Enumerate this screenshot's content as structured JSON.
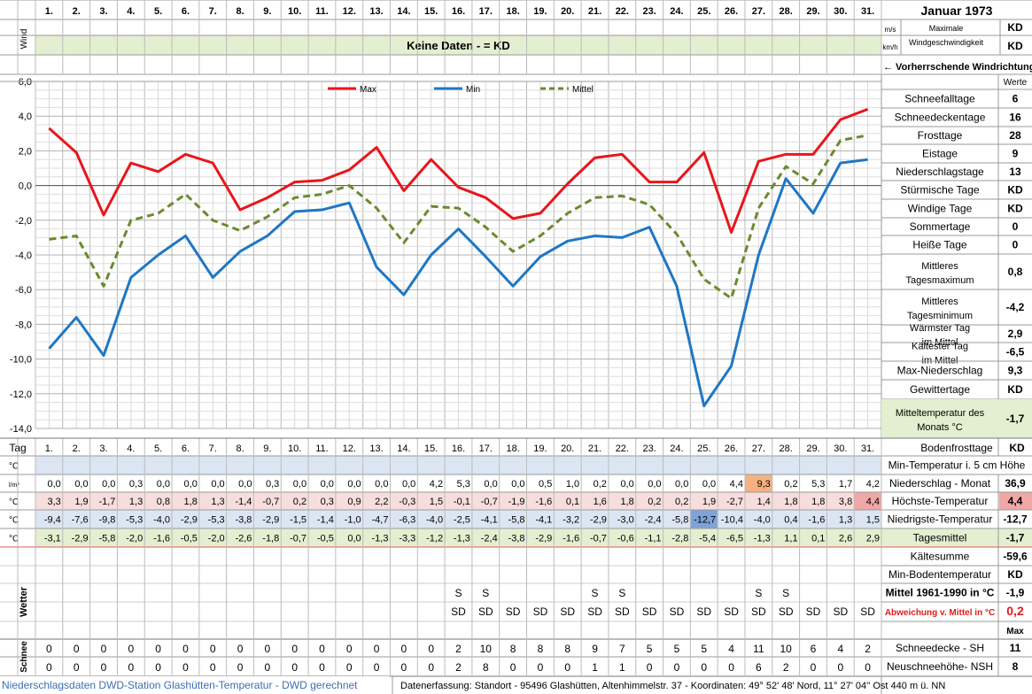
{
  "title": "Januar 1973",
  "days": [
    "1.",
    "2.",
    "3.",
    "4.",
    "5.",
    "6.",
    "7.",
    "8.",
    "9.",
    "10.",
    "11.",
    "12.",
    "13.",
    "14.",
    "15.",
    "16.",
    "17.",
    "18.",
    "19.",
    "20.",
    "21.",
    "22.",
    "23.",
    "24.",
    "25.",
    "26.",
    "27.",
    "28.",
    "29.",
    "30.",
    "31."
  ],
  "wind": {
    "label": "Wind",
    "unit_ms": "m/s",
    "unit_kmh": "km/h",
    "no_data": "Keine Daten -  = KD",
    "max_label": "Maximale Windgeschwindigkeit",
    "max_ms": "KD",
    "max_kmh": "KD",
    "direction": "← Vorherrschende Windrichtung"
  },
  "chart_data": {
    "type": "line",
    "x": [
      1,
      2,
      3,
      4,
      5,
      6,
      7,
      8,
      9,
      10,
      11,
      12,
      13,
      14,
      15,
      16,
      17,
      18,
      19,
      20,
      21,
      22,
      23,
      24,
      25,
      26,
      27,
      28,
      29,
      30,
      31
    ],
    "ylim": [
      -14,
      6
    ],
    "ytick_labels": [
      "6,0",
      "4,0",
      "2,0",
      "0,0",
      "-2,0",
      "-4,0",
      "-6,0",
      "-8,0",
      "-10,0",
      "-12,0",
      "-14,0"
    ],
    "yticks": [
      6,
      4,
      2,
      0,
      -2,
      -4,
      -6,
      -8,
      -10,
      -12,
      -14
    ],
    "grid": true,
    "legend_position": "top",
    "series": [
      {
        "name": "Max",
        "color": "#e8161c",
        "dash": false,
        "values": [
          3.3,
          1.9,
          -1.7,
          1.3,
          0.8,
          1.8,
          1.3,
          -1.4,
          -0.7,
          0.2,
          0.3,
          0.9,
          2.2,
          -0.3,
          1.5,
          -0.1,
          -0.7,
          -1.9,
          -1.6,
          0.1,
          1.6,
          1.8,
          0.2,
          0.2,
          1.9,
          -2.7,
          1.4,
          1.8,
          1.8,
          3.8,
          4.4
        ]
      },
      {
        "name": "Min",
        "color": "#1f77c4",
        "dash": false,
        "values": [
          -9.4,
          -7.6,
          -9.8,
          -5.3,
          -4.0,
          -2.9,
          -5.3,
          -3.8,
          -2.9,
          -1.5,
          -1.4,
          -1.0,
          -4.7,
          -6.3,
          -4.0,
          -2.5,
          -4.1,
          -5.8,
          -4.1,
          -3.2,
          -2.9,
          -3.0,
          -2.4,
          -5.8,
          -12.7,
          -10.4,
          -4.0,
          0.4,
          -1.6,
          1.3,
          1.5
        ]
      },
      {
        "name": "Mittel",
        "color": "#6b8a2e",
        "dash": true,
        "values": [
          -3.1,
          -2.9,
          -5.8,
          -2.0,
          -1.6,
          -0.5,
          -2.0,
          -2.6,
          -1.8,
          -0.7,
          -0.5,
          0.0,
          -1.3,
          -3.3,
          -1.2,
          -1.3,
          -2.4,
          -3.8,
          -2.9,
          -1.6,
          -0.7,
          -0.6,
          -1.1,
          -2.8,
          -5.4,
          -6.5,
          -1.3,
          1.1,
          0.1,
          2.6,
          2.9
        ]
      }
    ]
  },
  "table": {
    "tag_label": "Tag",
    "rows": [
      {
        "unit": "°C",
        "values": [
          "",
          "",
          "",
          "",
          "",
          "",
          "",
          "",
          "",
          "",
          "",
          "",
          "",
          "",
          "",
          "",
          "",
          "",
          "",
          "",
          "",
          "",
          "",
          "",
          "",
          "",
          "",
          "",
          "",
          "",
          ""
        ]
      },
      {
        "unit": "l/m²",
        "values": [
          "0,0",
          "0,0",
          "0,0",
          "0,3",
          "0,0",
          "0,0",
          "0,0",
          "0,0",
          "0,3",
          "0,0",
          "0,0",
          "0,0",
          "0,0",
          "0,0",
          "4,2",
          "5,3",
          "0,0",
          "0,0",
          "0,5",
          "1,0",
          "0,2",
          "0,0",
          "0,0",
          "0,0",
          "0,0",
          "4,4",
          "9,3",
          "0,2",
          "5,3",
          "1,7",
          "4,2"
        ]
      },
      {
        "unit": "°C",
        "values": [
          "3,3",
          "1,9",
          "-1,7",
          "1,3",
          "0,8",
          "1,8",
          "1,3",
          "-1,4",
          "-0,7",
          "0,2",
          "0,3",
          "0,9",
          "2,2",
          "-0,3",
          "1,5",
          "-0,1",
          "-0,7",
          "-1,9",
          "-1,6",
          "0,1",
          "1,6",
          "1,8",
          "0,2",
          "0,2",
          "1,9",
          "-2,7",
          "1,4",
          "1,8",
          "1,8",
          "3,8",
          "4,4"
        ]
      },
      {
        "unit": "°C",
        "values": [
          "-9,4",
          "-7,6",
          "-9,8",
          "-5,3",
          "-4,0",
          "-2,9",
          "-5,3",
          "-3,8",
          "-2,9",
          "-1,5",
          "-1,4",
          "-1,0",
          "-4,7",
          "-6,3",
          "-4,0",
          "-2,5",
          "-4,1",
          "-5,8",
          "-4,1",
          "-3,2",
          "-2,9",
          "-3,0",
          "-2,4",
          "-5,8",
          "-12,7",
          "-10,4",
          "-4,0",
          "0,4",
          "-1,6",
          "1,3",
          "1,5"
        ]
      },
      {
        "unit": "°C",
        "values": [
          "-3,1",
          "-2,9",
          "-5,8",
          "-2,0",
          "-1,6",
          "-0,5",
          "-2,0",
          "-2,6",
          "-1,8",
          "-0,7",
          "-0,5",
          "0,0",
          "-1,3",
          "-3,3",
          "-1,2",
          "-1,3",
          "-2,4",
          "-3,8",
          "-2,9",
          "-1,6",
          "-0,7",
          "-0,6",
          "-1,1",
          "-2,8",
          "-5,4",
          "-6,5",
          "-1,3",
          "1,1",
          "0,1",
          "2,6",
          "2,9"
        ]
      }
    ],
    "wetter_label": "Wetter",
    "wetter_s": [
      "",
      "",
      "",
      "",
      "",
      "",
      "",
      "",
      "",
      "",
      "",
      "",
      "",
      "",
      "",
      "S",
      "S",
      "",
      "",
      "",
      "S",
      "S",
      "",
      "",
      "",
      "",
      "S",
      "S",
      "",
      "",
      ""
    ],
    "wetter_sd": [
      "",
      "",
      "",
      "",
      "",
      "",
      "",
      "",
      "",
      "",
      "",
      "",
      "",
      "",
      "",
      "SD",
      "SD",
      "SD",
      "SD",
      "SD",
      "SD",
      "SD",
      "SD",
      "SD",
      "SD",
      "SD",
      "SD",
      "SD",
      "SD",
      "SD",
      "SD"
    ],
    "schnee_label": "Schnee",
    "schneedecke": [
      "0",
      "0",
      "0",
      "0",
      "0",
      "0",
      "0",
      "0",
      "0",
      "0",
      "0",
      "0",
      "0",
      "0",
      "0",
      "2",
      "10",
      "8",
      "8",
      "8",
      "9",
      "7",
      "5",
      "5",
      "5",
      "4",
      "11",
      "10",
      "6",
      "4",
      "2"
    ],
    "neuschnee": [
      "0",
      "0",
      "0",
      "0",
      "0",
      "0",
      "0",
      "0",
      "0",
      "0",
      "0",
      "0",
      "0",
      "0",
      "0",
      "2",
      "8",
      "0",
      "0",
      "0",
      "1",
      "1",
      "0",
      "0",
      "0",
      "0",
      "6",
      "2",
      "0",
      "0",
      "0"
    ]
  },
  "stats": {
    "werte_label": "Werte",
    "items": [
      {
        "label": "Schneefalltage",
        "value": "6"
      },
      {
        "label": "Schneedeckentage",
        "value": "16"
      },
      {
        "label": "Frosttage",
        "value": "28"
      },
      {
        "label": "Eistage",
        "value": "9"
      },
      {
        "label": "Niederschlagstage",
        "value": "13"
      },
      {
        "label": "Stürmische Tage",
        "value": "KD"
      },
      {
        "label": "Windige Tage",
        "value": "KD"
      },
      {
        "label": "Sommertage",
        "value": "0"
      },
      {
        "label": "Heiße Tage",
        "value": "0"
      },
      {
        "label": "Mittleres Tagesmaximum",
        "value": "0,8"
      },
      {
        "label": "Mittleres Tagesminimum",
        "value": "-4,2"
      },
      {
        "label": "Wärmster Tag im Mittel",
        "value": "2,9"
      },
      {
        "label": "Kältester Tag im Mittel",
        "value": "-6,5"
      },
      {
        "label": "Max-Niederschlag",
        "value": "9,3"
      },
      {
        "label": "Gewittertage",
        "value": "KD"
      },
      {
        "label": "Mitteltemperatur des Monats °C",
        "value": "-1,7"
      }
    ],
    "bodenfrost_label": "Bodenfrosttage",
    "bodenfrost_value": "KD",
    "table_labels": [
      {
        "label": "Min-Temperatur i. 5 cm Höhe",
        "value": ""
      },
      {
        "label": "Niederschlag - Monat",
        "value": "36,9"
      },
      {
        "label": "Höchste-Temperatur",
        "value": "4,4"
      },
      {
        "label": "Niedrigste-Temperatur",
        "value": "-12,7"
      },
      {
        "label": "Tagesmittel",
        "value": "-1,7"
      }
    ],
    "kaeltesumme_label": "Kältesumme",
    "kaeltesumme_value": "-59,6",
    "minboden_label": "Min-Bodentemperatur",
    "minboden_value": "KD",
    "mittel6190_label": "Mittel 1961-1990 in °C",
    "mittel6190_value": "-1,9",
    "abweichung_label": "Abweichung v. Mittel in °C",
    "abweichung_value": "0,2",
    "max_label": "Max",
    "schneedecke_label": "Schneedecke -  SH",
    "schneedecke_value": "11",
    "neuschnee_label": "Neuschneehöhe- NSH",
    "neuschnee_value": "8"
  },
  "footer": {
    "left": "Niederschlagsdaten DWD-Station Glashütten-Temperatur -  DWD gerechnet",
    "right": "Datenerfassung: Standort -  95496  Glashütten, Altenhimmelstr. 37 - Koordinaten: 49° 52' 48' Nord,  11° 27' 04'' Ost  440 m ü. NN"
  }
}
